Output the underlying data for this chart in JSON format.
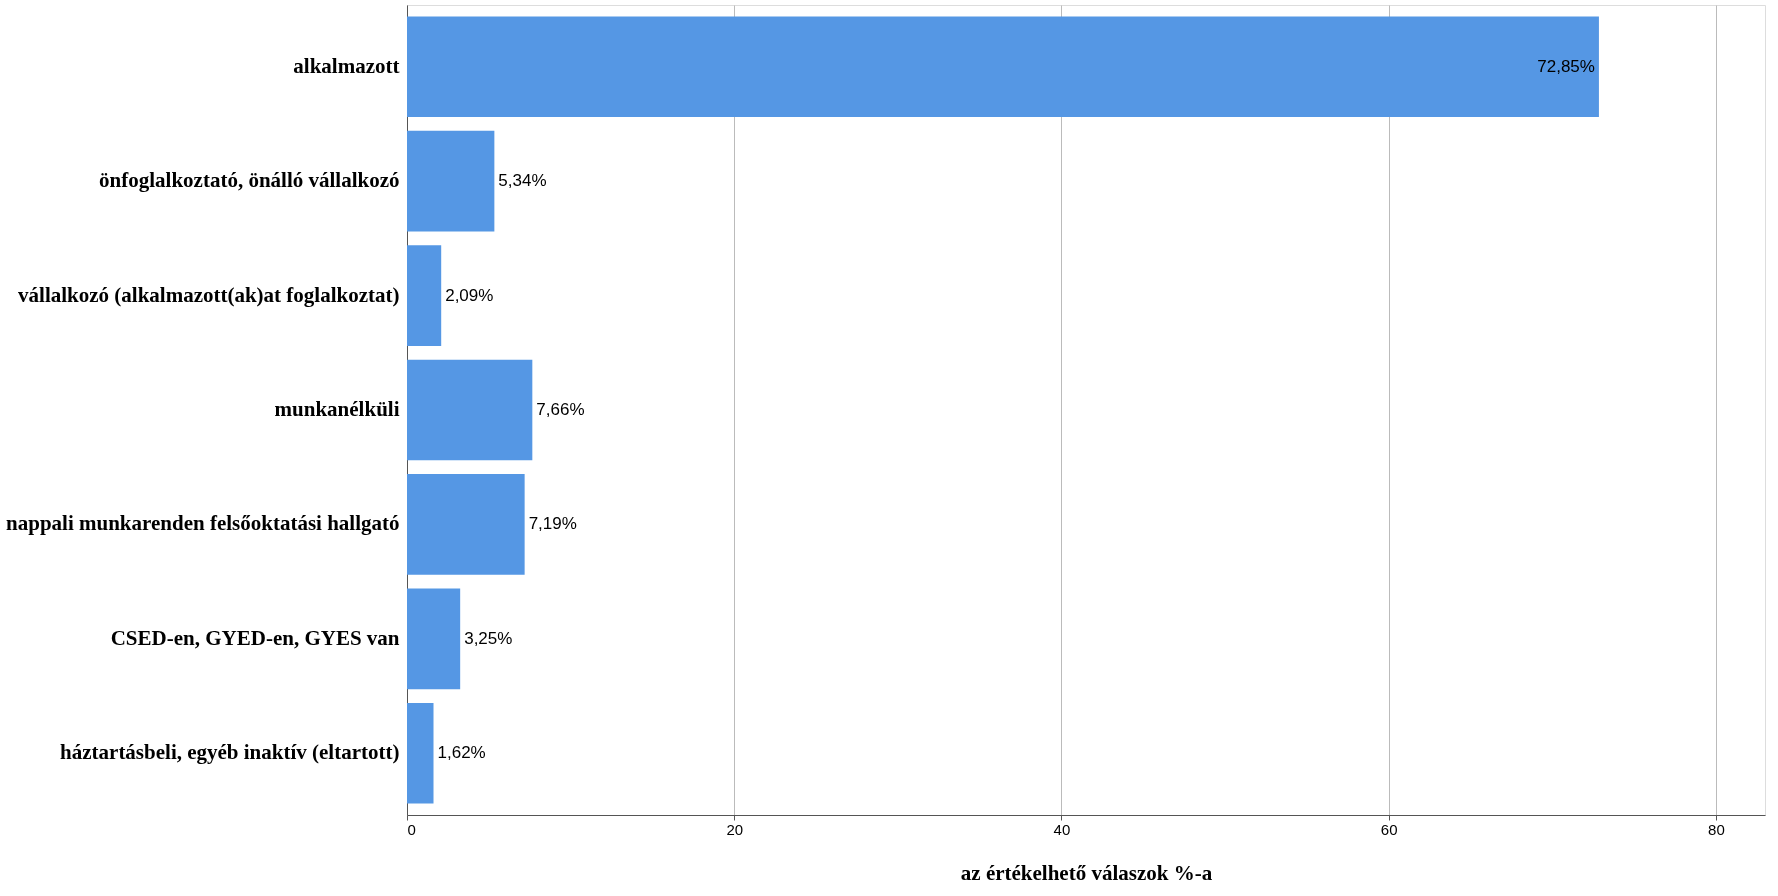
{
  "chart_data": {
    "type": "bar",
    "orientation": "horizontal",
    "xlabel": "az értékelhető válaszok %-a",
    "categories": [
      "alkalmazott",
      "önfoglalkoztató, önálló vállalkozó",
      "vállalkozó (alkalmazott(ak)at foglalkoztat)",
      "munkanélküli",
      "nappali munkarenden felsőoktatási hallgató",
      "CSED-en, GYED-en, GYES van",
      "háztartásbeli, egyéb inaktív (eltartott)"
    ],
    "values": [
      72.85,
      5.34,
      2.09,
      7.66,
      7.19,
      3.25,
      1.62
    ],
    "value_labels": [
      "72,85%",
      "5,34%",
      "2,09%",
      "7,66%",
      "7,19%",
      "3,25%",
      "1,62%"
    ],
    "color": "#5597e4",
    "xlim": [
      0,
      83
    ],
    "xticks": [
      0,
      20,
      40,
      60,
      80
    ],
    "grid": "x"
  }
}
